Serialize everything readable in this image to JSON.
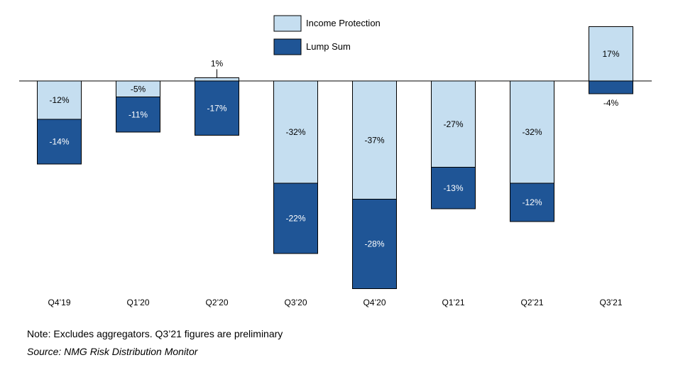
{
  "chart_data": {
    "type": "bar",
    "stacked": true,
    "categories": [
      "Q4’19",
      "Q1’20",
      "Q2’20",
      "Q3’20",
      "Q4’20",
      "Q1’21",
      "Q2’21",
      "Q3’21"
    ],
    "series": [
      {
        "name": "Income Protection",
        "color": "#c5def0",
        "values": [
          -12,
          -5,
          1,
          -32,
          -37,
          -27,
          -32,
          17
        ],
        "labels": [
          "-12%",
          "-5%",
          "1%",
          "-32%",
          "-37%",
          "-27%",
          "-32%",
          "17%"
        ]
      },
      {
        "name": "Lump Sum",
        "color": "#1f5596",
        "values": [
          -14,
          -11,
          -17,
          -22,
          -28,
          -13,
          -12,
          -4
        ],
        "labels": [
          "-14%",
          "-11%",
          "-17%",
          "-22%",
          "-28%",
          "-13%",
          "-12%",
          "-4%"
        ]
      }
    ],
    "ylim": [
      -65,
      17
    ],
    "grid": false,
    "legend_position": "top-center"
  },
  "note": "Note:  Excludes aggregators. Q3’21 figures are preliminary",
  "source": "Source: NMG Risk Distribution Monitor"
}
